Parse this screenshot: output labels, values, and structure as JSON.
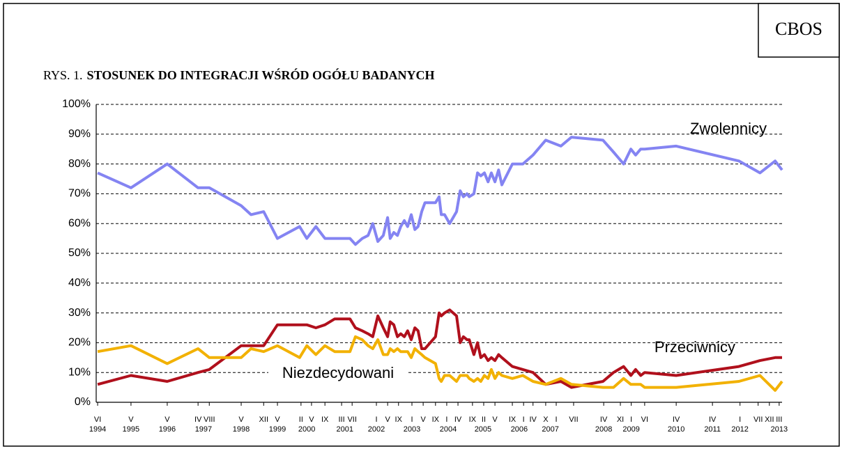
{
  "chart_data": {
    "type": "line",
    "source": "CBOS",
    "figure_number": "RYS. 1.",
    "title": "STOSUNEK DO INTEGRACJI WŚRÓD OGÓŁU BADANYCH",
    "x": [
      1994.4,
      1995.32,
      1996.32,
      1997.17,
      1997.48,
      1998.36,
      1998.63,
      1998.98,
      1999.36,
      1999.97,
      2000.17,
      2000.42,
      2000.67,
      2000.94,
      2001.36,
      2001.51,
      2001.7,
      2001.86,
      2001.99,
      2002.13,
      2002.28,
      2002.4,
      2002.47,
      2002.57,
      2002.67,
      2002.76,
      2002.86,
      2002.95,
      2003.05,
      2003.15,
      2003.24,
      2003.34,
      2003.43,
      2003.72,
      2003.82,
      2003.88,
      2003.97,
      2004.11,
      2004.3,
      2004.4,
      2004.49,
      2004.59,
      2004.65,
      2004.78,
      2004.88,
      2004.97,
      2005.07,
      2005.17,
      2005.26,
      2005.36,
      2005.46,
      2005.55,
      2005.84,
      2006.13,
      2006.41,
      2006.76,
      2007.18,
      2007.47,
      2008.34,
      2008.63,
      2008.91,
      2009.11,
      2009.24,
      2009.38,
      2009.49,
      2010.36,
      2012.09,
      2012.67,
      2013.09,
      2013.28
    ],
    "series": [
      {
        "name": "Zwolennicy",
        "color": "#8484f2",
        "values": [
          77,
          72,
          80,
          72,
          72,
          66,
          63,
          64,
          55,
          59,
          55,
          59,
          55,
          55,
          55,
          53,
          55,
          56,
          60,
          54,
          56,
          62,
          55,
          57,
          56,
          59,
          61,
          59,
          63,
          58,
          59,
          64,
          67,
          67,
          69,
          63,
          63,
          60,
          64,
          71,
          69,
          70,
          69,
          70,
          77,
          76,
          77,
          74,
          77,
          74,
          78,
          73,
          80,
          80,
          83,
          88,
          86,
          89,
          88,
          84,
          80,
          85,
          83,
          85,
          85,
          86,
          81,
          77,
          81,
          78
        ]
      },
      {
        "name": "Przeciwnicy",
        "color": "#b0101c",
        "values": [
          6,
          9,
          7,
          10,
          11,
          19,
          19,
          19,
          26,
          26,
          26,
          25,
          26,
          28,
          28,
          25,
          24,
          23,
          22,
          29,
          25,
          22,
          27,
          26,
          22,
          23,
          22,
          24,
          21,
          25,
          24,
          18,
          18,
          22,
          30,
          29,
          30,
          31,
          29,
          20,
          22,
          21,
          21,
          16,
          20,
          15,
          16,
          14,
          15,
          14,
          16,
          15,
          12,
          11,
          10,
          6,
          7,
          5,
          7,
          10,
          12,
          9,
          11,
          9,
          10,
          9,
          12,
          14,
          15,
          15
        ]
      },
      {
        "name": "Niezdecydowani",
        "color": "#f2b100",
        "values": [
          17,
          19,
          13,
          18,
          15,
          15,
          18,
          17,
          19,
          15,
          19,
          16,
          19,
          17,
          17,
          22,
          21,
          19,
          18,
          21,
          16,
          16,
          18,
          17,
          18,
          17,
          17,
          17,
          15,
          18,
          17,
          16,
          15,
          13,
          8,
          7,
          9,
          9,
          7,
          9,
          9,
          9,
          8,
          7,
          8,
          7,
          9,
          8,
          11,
          8,
          10,
          9,
          8,
          9,
          7,
          6,
          8,
          6,
          5,
          5,
          8,
          6,
          6,
          6,
          5,
          5,
          7,
          9,
          4,
          7
        ]
      }
    ],
    "xlim": [
      1994.36,
      2013.28
    ],
    "xticks": [
      {
        "value": 1994.4,
        "label": "VI"
      },
      {
        "value": 1995.32,
        "label": "V"
      },
      {
        "value": 1996.32,
        "label": "V"
      },
      {
        "value": 1997.17,
        "label": "IV"
      },
      {
        "value": 1997.48,
        "label": "VIII"
      },
      {
        "value": 1998.36,
        "label": "V"
      },
      {
        "value": 1998.98,
        "label": "XII"
      },
      {
        "value": 1999.36,
        "label": "V"
      },
      {
        "value": 2000.01,
        "label": "II"
      },
      {
        "value": 2000.3,
        "label": "V"
      },
      {
        "value": 2000.67,
        "label": "IX"
      },
      {
        "value": 2001.13,
        "label": "III"
      },
      {
        "value": 2001.42,
        "label": "VII"
      },
      {
        "value": 2002.09,
        "label": "I"
      },
      {
        "value": 2002.4,
        "label": "V"
      },
      {
        "value": 2002.7,
        "label": "IX"
      },
      {
        "value": 2003.07,
        "label": "I"
      },
      {
        "value": 2003.38,
        "label": "V"
      },
      {
        "value": 2003.72,
        "label": "IX"
      },
      {
        "value": 2004.03,
        "label": "I"
      },
      {
        "value": 2004.34,
        "label": "IV"
      },
      {
        "value": 2004.74,
        "label": "IX"
      },
      {
        "value": 2005.05,
        "label": "II"
      },
      {
        "value": 2005.36,
        "label": "V"
      },
      {
        "value": 2005.84,
        "label": "IX"
      },
      {
        "value": 2006.15,
        "label": "I"
      },
      {
        "value": 2006.41,
        "label": "IV"
      },
      {
        "value": 2006.76,
        "label": "X"
      },
      {
        "value": 2007.05,
        "label": "I"
      },
      {
        "value": 2007.53,
        "label": "VII"
      },
      {
        "value": 2008.36,
        "label": "IV"
      },
      {
        "value": 2008.82,
        "label": "XI"
      },
      {
        "value": 2009.12,
        "label": "I"
      },
      {
        "value": 2009.49,
        "label": "VI"
      },
      {
        "value": 2010.36,
        "label": "IV"
      },
      {
        "value": 2011.36,
        "label": "IV"
      },
      {
        "value": 2012.12,
        "label": "I"
      },
      {
        "value": 2012.62,
        "label": "VII"
      },
      {
        "value": 2012.93,
        "label": "XII"
      },
      {
        "value": 2013.2,
        "label": "III"
      }
    ],
    "year_ticks": [
      {
        "value": 1994.4,
        "label": "1994"
      },
      {
        "value": 1995.32,
        "label": "1995"
      },
      {
        "value": 1996.32,
        "label": "1996"
      },
      {
        "value": 1997.32,
        "label": "1997"
      },
      {
        "value": 1998.36,
        "label": "1998"
      },
      {
        "value": 1999.36,
        "label": "1999"
      },
      {
        "value": 2000.17,
        "label": "2000"
      },
      {
        "value": 2001.22,
        "label": "2001"
      },
      {
        "value": 2002.09,
        "label": "2002"
      },
      {
        "value": 2003.07,
        "label": "2003"
      },
      {
        "value": 2004.07,
        "label": "2004"
      },
      {
        "value": 2005.03,
        "label": "2005"
      },
      {
        "value": 2006.03,
        "label": "2006"
      },
      {
        "value": 2006.89,
        "label": "2007"
      },
      {
        "value": 2008.36,
        "label": "2008"
      },
      {
        "value": 2009.12,
        "label": "2009"
      },
      {
        "value": 2010.36,
        "label": "2010"
      },
      {
        "value": 2011.36,
        "label": "2011"
      },
      {
        "value": 2012.12,
        "label": "2012"
      },
      {
        "value": 2013.2,
        "label": "2013"
      }
    ],
    "ylim": [
      0,
      100
    ],
    "yticks": [
      {
        "value": 0,
        "label": "0%"
      },
      {
        "value": 10,
        "label": "10%"
      },
      {
        "value": 20,
        "label": "20%"
      },
      {
        "value": 30,
        "label": "30%"
      },
      {
        "value": 40,
        "label": "40%"
      },
      {
        "value": 50,
        "label": "50%"
      },
      {
        "value": 60,
        "label": "60%"
      },
      {
        "value": 70,
        "label": "70%"
      },
      {
        "value": 80,
        "label": "80%"
      },
      {
        "value": 90,
        "label": "90%"
      },
      {
        "value": 100,
        "label": "100%"
      }
    ],
    "grid": true
  }
}
